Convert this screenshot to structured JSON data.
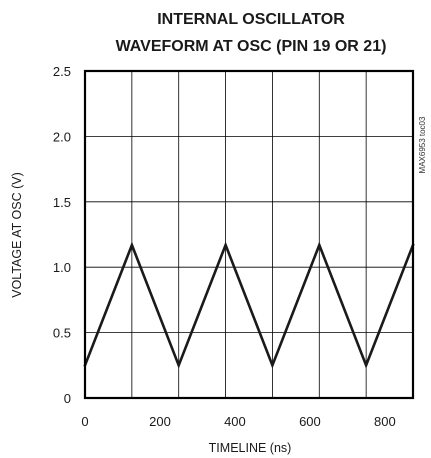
{
  "chart_data": {
    "type": "line",
    "title_lines": [
      "INTERNAL OSCILLATOR",
      "WAVEFORM AT OSC (PIN 19 OR 21)"
    ],
    "xlabel": "TIMELINE (ns)",
    "ylabel": "VOLTAGE AT OSC (V)",
    "annotation": "MAX6953 toc03",
    "xlim": [
      0,
      875
    ],
    "ylim": [
      0,
      2.5
    ],
    "x_ticks": [
      {
        "value": 0,
        "label": "0"
      },
      {
        "value": 200,
        "label": "200"
      },
      {
        "value": 400,
        "label": "400"
      },
      {
        "value": 600,
        "label": "600"
      },
      {
        "value": 800,
        "label": "800"
      }
    ],
    "y_ticks": [
      {
        "value": 0,
        "label": "0"
      },
      {
        "value": 0.5,
        "label": "0.5"
      },
      {
        "value": 1.0,
        "label": "1.0"
      },
      {
        "value": 1.5,
        "label": "1.5"
      },
      {
        "value": 2.0,
        "label": "2.0"
      },
      {
        "value": 2.5,
        "label": "2.5"
      }
    ],
    "x_grid": [
      125,
      250,
      375,
      500,
      625,
      750
    ],
    "y_grid": [
      0.5,
      1.0,
      1.5,
      2.0
    ],
    "grid": true,
    "series": [
      {
        "color": "#1a1a1a",
        "x": [
          0,
          125,
          250,
          375,
          500,
          625,
          750,
          875
        ],
        "y": [
          0.25,
          1.17,
          0.25,
          1.17,
          0.25,
          1.17,
          0.25,
          1.17
        ]
      }
    ]
  }
}
